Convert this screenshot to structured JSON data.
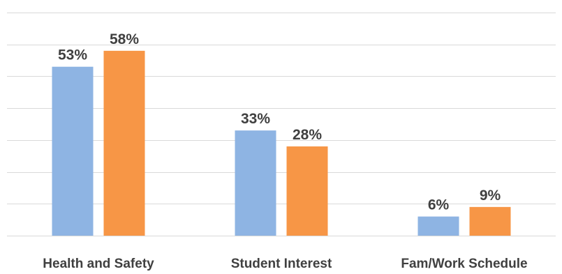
{
  "chart_data": {
    "type": "bar",
    "categories": [
      "Health and Safety",
      "Student Interest",
      "Fam/Work Schedule"
    ],
    "series": [
      {
        "values": [
          53,
          33,
          6
        ],
        "labels": [
          "53%",
          "33%",
          "6%"
        ],
        "color": "#8eb4e3"
      },
      {
        "values": [
          58,
          28,
          9
        ],
        "labels": [
          "58%",
          "28%",
          "9%"
        ],
        "color": "#f79646"
      }
    ],
    "ylim": [
      0,
      70
    ],
    "grid": true,
    "title": "",
    "xlabel": "",
    "ylabel": ""
  }
}
